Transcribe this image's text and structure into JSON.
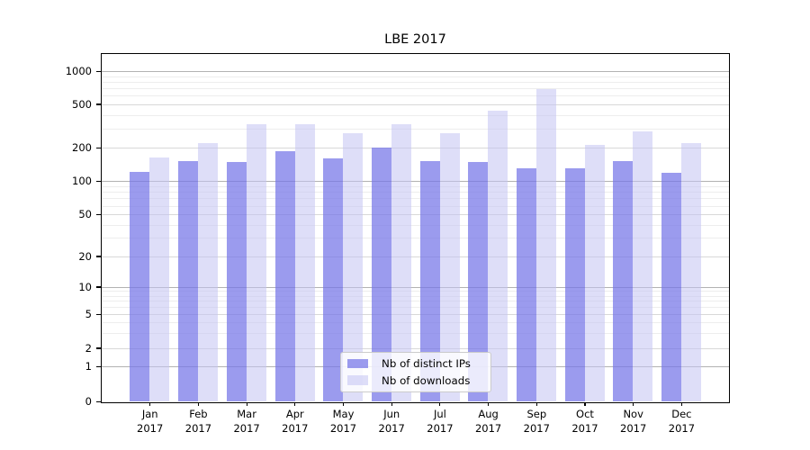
{
  "title": "LBE 2017",
  "chart_data": {
    "type": "bar",
    "title": "LBE 2017",
    "categories": [
      "Jan 2017",
      "Feb 2017",
      "Mar 2017",
      "Apr 2017",
      "May 2017",
      "Jun 2017",
      "Jul 2017",
      "Aug 2017",
      "Sep 2017",
      "Oct 2017",
      "Nov 2017",
      "Dec 2017"
    ],
    "x_months": [
      "Jan",
      "Feb",
      "Mar",
      "Apr",
      "May",
      "Jun",
      "Jul",
      "Aug",
      "Sep",
      "Oct",
      "Nov",
      "Dec"
    ],
    "x_year": "2017",
    "series": [
      {
        "name": "Nb of distinct IPs",
        "color": "rgba(116,116,232,0.72)",
        "values": [
          122,
          153,
          150,
          187,
          161,
          200,
          152,
          148,
          130,
          130,
          152,
          120
        ]
      },
      {
        "name": "Nb of downloads",
        "color": "rgba(196,196,242,0.56)",
        "values": [
          165,
          220,
          330,
          330,
          270,
          330,
          272,
          440,
          690,
          211,
          280,
          222
        ]
      }
    ],
    "y_scale": "symlog",
    "y_ticks": [
      0,
      1,
      2,
      5,
      10,
      20,
      50,
      100,
      200,
      500,
      1000
    ],
    "ylim": [
      0,
      1400
    ],
    "xlabel": "",
    "ylabel": "",
    "grid": true,
    "legend_position": "lower center",
    "gridline_colors": {
      "major": "#b2b2b2",
      "mid": "#d8d8d8",
      "minor": "#ededed"
    }
  }
}
